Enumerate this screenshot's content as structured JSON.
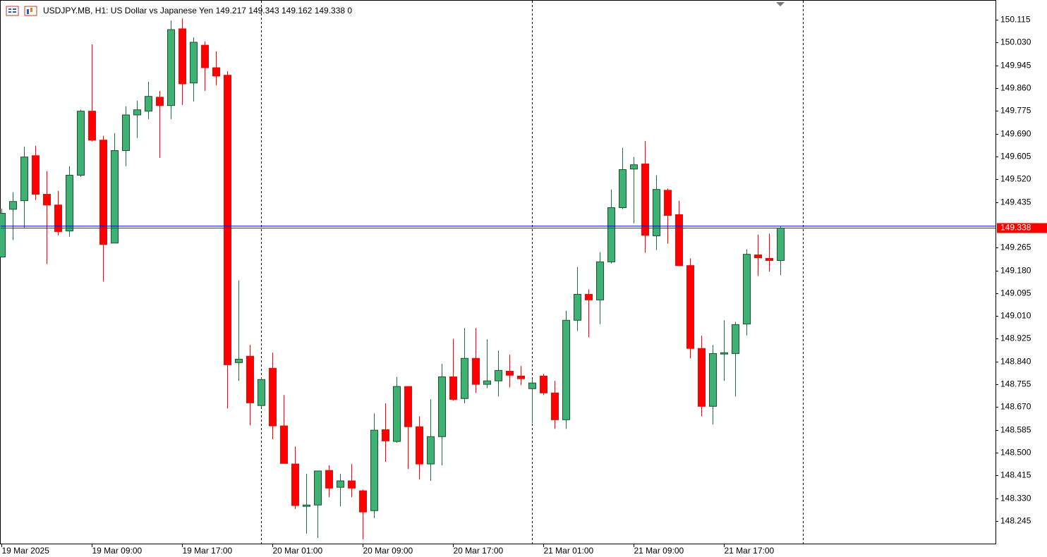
{
  "chart_data": {
    "type": "candlestick",
    "title": "USDJPY.MB, H1:  US Dollar vs Japanese Yen  149.217 149.343 149.162 149.338  0",
    "categories": [
      "19 Mar 2025",
      null,
      null,
      null,
      null,
      null,
      null,
      null,
      "19 Mar 09:00",
      null,
      null,
      null,
      null,
      null,
      null,
      null,
      "19 Mar 17:00",
      null,
      null,
      null,
      null,
      null,
      null,
      null,
      "20 Mar 01:00",
      null,
      null,
      null,
      null,
      null,
      null,
      null,
      "20 Mar 09:00",
      null,
      null,
      null,
      null,
      null,
      null,
      null,
      "20 Mar 17:00",
      null,
      null,
      null,
      null,
      null,
      null,
      null,
      "21 Mar 01:00",
      null,
      null,
      null,
      null,
      null,
      null,
      null,
      "21 Mar 09:00",
      null,
      null,
      null,
      null,
      null,
      null,
      null,
      "21 Mar 17:00",
      null,
      null,
      null,
      null,
      null
    ],
    "open": [
      149.23,
      149.408,
      149.44,
      149.608,
      149.464,
      149.424,
      149.327,
      149.535,
      149.774,
      149.666,
      149.282,
      149.627,
      149.76,
      149.774,
      149.826,
      149.795,
      150.081,
      149.879,
      150.02,
      149.936,
      149.908,
      148.836,
      148.86,
      148.676,
      148.815,
      148.6,
      148.458,
      148.3,
      148.305,
      148.434,
      148.371,
      148.395,
      148.358,
      148.284,
      148.586,
      148.542,
      148.747,
      148.597,
      148.458,
      148.56,
      148.783,
      148.702,
      148.852,
      148.755,
      148.768,
      148.804,
      148.786,
      148.739,
      148.786,
      148.723,
      148.623,
      148.994,
      149.091,
      149.07,
      149.212,
      149.414,
      149.558,
      149.577,
      149.309,
      149.479,
      149.388,
      149.198,
      148.889,
      148.673,
      148.868,
      148.87,
      148.98,
      149.238,
      149.225,
      149.217
    ],
    "high": [
      149.411,
      149.472,
      149.642,
      149.645,
      149.55,
      149.477,
      149.569,
      149.779,
      150.023,
      149.682,
      149.692,
      149.792,
      149.813,
      149.884,
      149.85,
      150.112,
      150.12,
      150.049,
      150.034,
      149.997,
      149.923,
      149.143,
      148.902,
      148.781,
      148.873,
      148.715,
      148.523,
      148.421,
      148.432,
      148.453,
      148.421,
      148.458,
      148.363,
      148.647,
      148.684,
      148.783,
      148.747,
      148.636,
      148.699,
      148.831,
      148.925,
      148.965,
      148.965,
      148.923,
      148.881,
      148.865,
      148.823,
      148.773,
      148.794,
      148.768,
      149.03,
      149.193,
      149.109,
      149.248,
      149.482,
      149.637,
      149.603,
      149.663,
      149.535,
      149.485,
      149.44,
      149.225,
      148.936,
      148.902,
      148.994,
      148.988,
      149.259,
      149.314,
      149.317,
      149.343
    ],
    "low": [
      149.23,
      149.293,
      149.34,
      149.443,
      149.204,
      149.311,
      149.306,
      149.529,
      149.661,
      149.138,
      149.282,
      149.569,
      149.674,
      149.745,
      149.6,
      149.745,
      149.797,
      149.81,
      149.85,
      149.871,
      148.665,
      148.768,
      148.602,
      148.668,
      148.55,
      148.46,
      148.29,
      148.198,
      148.182,
      148.334,
      148.3,
      148.334,
      148.177,
      148.256,
      148.466,
      148.537,
      148.439,
      148.4,
      148.395,
      148.453,
      148.694,
      148.684,
      148.723,
      148.741,
      148.71,
      148.744,
      148.752,
      148.61,
      148.715,
      148.589,
      148.589,
      148.954,
      148.931,
      148.98,
      149.206,
      149.409,
      149.356,
      149.246,
      149.256,
      149.28,
      149.198,
      148.852,
      148.636,
      148.605,
      148.768,
      148.71,
      148.938,
      149.159,
      149.175,
      149.162
    ],
    "close": [
      149.393,
      149.437,
      149.603,
      149.464,
      149.424,
      149.325,
      149.535,
      149.774,
      149.666,
      149.277,
      149.627,
      149.76,
      149.779,
      149.829,
      149.795,
      150.078,
      149.876,
      150.031,
      149.936,
      149.905,
      148.828,
      148.849,
      148.686,
      148.773,
      148.6,
      148.46,
      148.303,
      148.305,
      148.432,
      148.368,
      148.395,
      148.368,
      148.279,
      148.584,
      148.544,
      148.747,
      148.597,
      148.458,
      148.56,
      148.783,
      148.699,
      148.852,
      148.755,
      148.768,
      148.807,
      148.789,
      148.776,
      148.76,
      148.723,
      148.623,
      148.994,
      149.091,
      149.07,
      149.212,
      149.414,
      149.556,
      149.574,
      149.311,
      149.482,
      149.385,
      149.198,
      148.889,
      148.673,
      148.87,
      148.873,
      148.978,
      149.24,
      149.227,
      149.217,
      149.338
    ],
    "up_color": "#3cb371",
    "down_color": "#ff0000",
    "current_price": {
      "value": 149.338,
      "label": "149.338"
    },
    "ask_price": 149.345,
    "ylim": [
      148.161,
      150.186
    ],
    "yticks": [
      150.115,
      {
        "value": 150.03,
        "label": "150.030"
      },
      149.945,
      {
        "value": 149.86,
        "label": "149.860"
      },
      149.775,
      {
        "value": 149.69,
        "label": "149.690"
      },
      149.605,
      {
        "value": 149.52,
        "label": "149.520"
      },
      149.435,
      149.265,
      {
        "value": 149.18,
        "label": "149.180"
      },
      149.095,
      {
        "value": 149.01,
        "label": "149.010"
      },
      148.925,
      {
        "value": 148.84,
        "label": "148.840"
      },
      148.755,
      {
        "value": 148.67,
        "label": "148.670"
      },
      148.585,
      {
        "value": 148.5,
        "label": "148.500"
      },
      148.415,
      {
        "value": 148.33,
        "label": "148.330"
      },
      148.245
    ]
  }
}
